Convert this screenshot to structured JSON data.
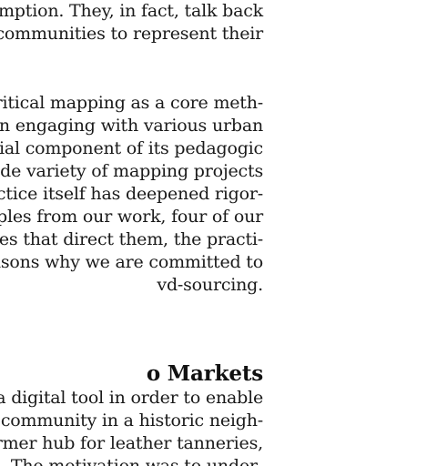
{
  "para1": [
    "umption. They, in fact, talk back",
    "r communities to represent their"
  ],
  "para2": [
    "d critical mapping as a core meth-",
    " in engaging with various urban",
    "ntial component of its pedagogic",
    "wide variety of mapping projects",
    "actice itself has deepened rigor-",
    "mples from our work, four of our",
    "iples that direct them, the practi-",
    "easons why we are committed to",
    "vd-sourcing."
  ],
  "section_heading": "o Markets",
  "para3": [
    "ld a digital tool in order to enable",
    " community in a historic neigh-",
    "former hub for leather tanneries,",
    "s. The motivation was to under-"
  ]
}
